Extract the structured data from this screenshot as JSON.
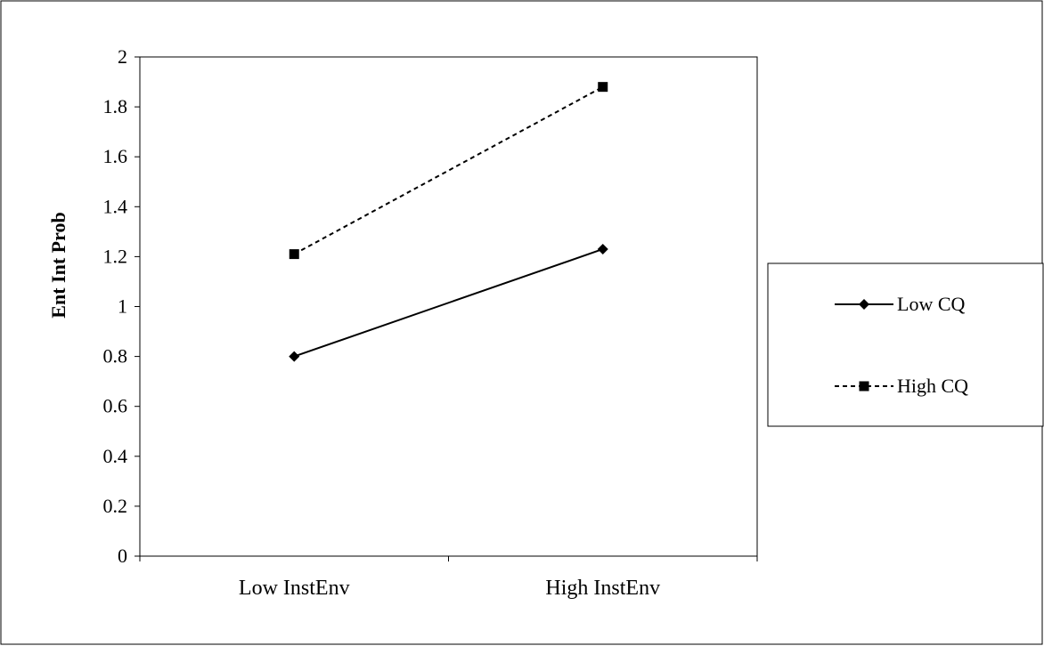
{
  "chart_data": {
    "type": "line",
    "title": "",
    "xlabel": "",
    "ylabel": "Ent Int Prob",
    "categories": [
      "Low InstEnv",
      "High InstEnv"
    ],
    "ylim": [
      0,
      2
    ],
    "yticks": [
      "0",
      "0.2",
      "0.4",
      "0.6",
      "0.8",
      "1",
      "1.2",
      "1.4",
      "1.6",
      "1.8",
      "2"
    ],
    "grid": false,
    "legend_position": "right",
    "series": [
      {
        "name": "Low CQ",
        "values": [
          0.8,
          1.23
        ],
        "line_style": "solid",
        "marker": "diamond",
        "color": "#000000"
      },
      {
        "name": "High CQ",
        "values": [
          1.21,
          1.88
        ],
        "line_style": "dashed",
        "marker": "square",
        "color": "#000000"
      }
    ]
  }
}
